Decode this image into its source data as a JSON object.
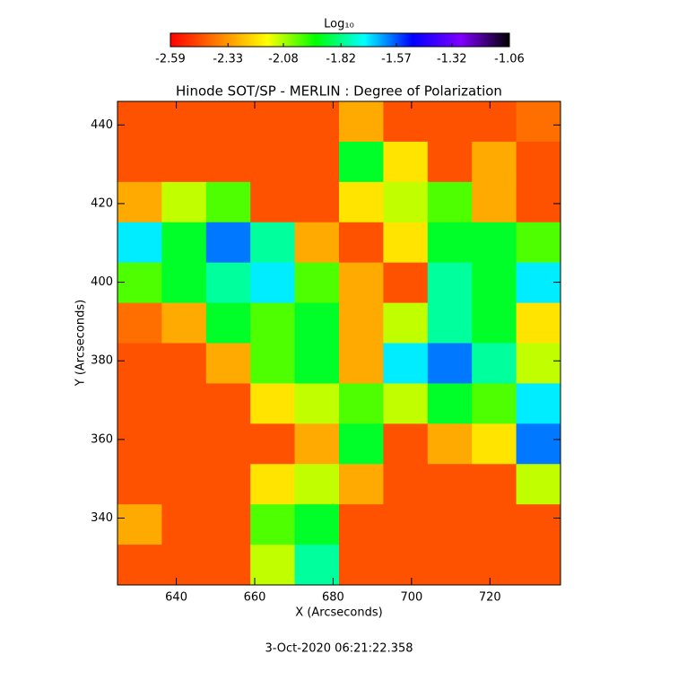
{
  "chart_data": {
    "type": "heatmap",
    "title": "Hinode SOT/SP - MERLIN : Degree of Polarization",
    "xlabel": "X (Arcseconds)",
    "ylabel": "Y (Arcseconds)",
    "footer": "3-Oct-2020 06:21:22.358",
    "colorbar_label": "Log₁₀",
    "xlim": [
      625,
      738
    ],
    "ylim": [
      323,
      446
    ],
    "xticks": [
      640,
      660,
      680,
      700,
      720
    ],
    "yticks": [
      340,
      360,
      380,
      400,
      420,
      440
    ],
    "clim": [
      -2.59,
      -1.06
    ],
    "cticks": [
      -2.59,
      -2.33,
      -2.08,
      -1.82,
      -1.57,
      -1.32,
      -1.06
    ],
    "colormap": [
      "#ff0000",
      "#ff8000",
      "#ffff00",
      "#00ff00",
      "#00ffff",
      "#0000ff",
      "#8000ff",
      "#000000"
    ],
    "z": [
      [
        -2.45,
        -2.45,
        -2.45,
        -2.45,
        -2.45,
        -2.3,
        -2.45,
        -2.45,
        -2.45,
        -2.4
      ],
      [
        -2.45,
        -2.45,
        -2.45,
        -2.45,
        -2.45,
        -1.9,
        -2.2,
        -2.45,
        -2.3,
        -2.45
      ],
      [
        -2.3,
        -2.1,
        -2.0,
        -2.45,
        -2.45,
        -2.2,
        -2.1,
        -2.0,
        -2.3,
        -2.45
      ],
      [
        -1.7,
        -1.9,
        -1.6,
        -1.8,
        -2.3,
        -2.45,
        -2.2,
        -1.9,
        -1.9,
        -2.0
      ],
      [
        -2.0,
        -1.9,
        -1.8,
        -1.7,
        -2.0,
        -2.3,
        -2.45,
        -1.8,
        -1.9,
        -1.7
      ],
      [
        -2.4,
        -2.3,
        -1.9,
        -2.0,
        -1.9,
        -2.3,
        -2.1,
        -1.8,
        -1.9,
        -2.2
      ],
      [
        -2.45,
        -2.45,
        -2.3,
        -2.0,
        -1.9,
        -2.3,
        -1.7,
        -1.6,
        -1.8,
        -2.1
      ],
      [
        -2.45,
        -2.45,
        -2.45,
        -2.2,
        -2.1,
        -2.0,
        -2.1,
        -1.9,
        -2.0,
        -1.7
      ],
      [
        -2.45,
        -2.45,
        -2.45,
        -2.45,
        -2.3,
        -1.9,
        -2.45,
        -2.3,
        -2.2,
        -1.6
      ],
      [
        -2.45,
        -2.45,
        -2.45,
        -2.2,
        -2.1,
        -2.3,
        -2.45,
        -2.45,
        -2.45,
        -2.1
      ],
      [
        -2.3,
        -2.45,
        -2.45,
        -2.0,
        -1.9,
        -2.45,
        -2.45,
        -2.45,
        -2.45,
        -2.45
      ],
      [
        -2.45,
        -2.45,
        -2.45,
        -2.1,
        -1.8,
        -2.45,
        -2.45,
        -2.45,
        -2.45,
        -2.45
      ]
    ]
  }
}
